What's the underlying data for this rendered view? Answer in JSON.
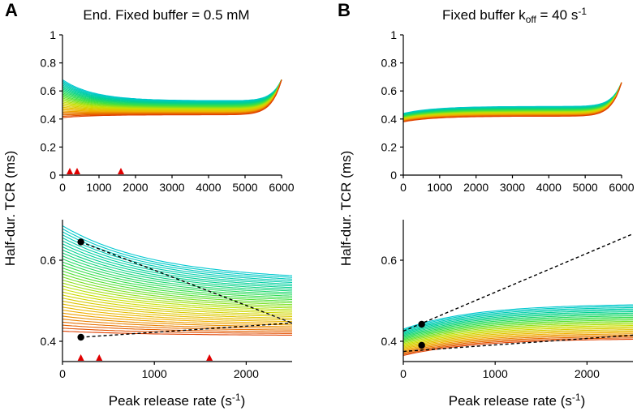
{
  "figure": {
    "panel_letters": [
      "A",
      "B"
    ],
    "title_a": "End. Fixed buffer = 0.5 mM",
    "title_b_main": "Fixed buffer k",
    "title_b_sub": "off",
    "title_b_tail": " = 40 s",
    "title_b_sup": "-1",
    "ylabel": "Half-dur. TCR (ms)",
    "xlabel": "Peak release rate (s",
    "xlabel_sup": "-1",
    "xlabel_close": ")"
  },
  "colors": {
    "family_gradient": [
      "#00c8d0",
      "#00d090",
      "#40e040",
      "#c8e000",
      "#f0b000",
      "#e04000"
    ],
    "markers": "#e00000",
    "points": "#000000"
  },
  "chart_data": [
    {
      "id": "A-top",
      "type": "line",
      "title": "End. Fixed buffer = 0.5 mM",
      "xlim": [
        0,
        6000
      ],
      "ylim": [
        0,
        1
      ],
      "xticks": [
        0,
        1000,
        2000,
        3000,
        4000,
        5000,
        6000
      ],
      "yticks": [
        0,
        0.2,
        0.4,
        0.6,
        0.8,
        1
      ],
      "xticklabels": [
        "0",
        "1000",
        "2000",
        "3000",
        "4000",
        "5000",
        "6000"
      ],
      "yticklabels": [
        "0",
        "0.2",
        "0.4",
        "0.6",
        "0.8",
        "1"
      ],
      "family": {
        "count": 30,
        "x_max": 6000,
        "start_top": 0.68,
        "start_bottom": 0.41,
        "mid_top": 0.53,
        "mid_bottom": 0.43,
        "end": 0.68
      },
      "release_markers_x": [
        200,
        400,
        1600
      ]
    },
    {
      "id": "B-top",
      "type": "line",
      "title": "Fixed buffer koff = 40 s-1",
      "xlim": [
        0,
        6000
      ],
      "ylim": [
        0,
        1
      ],
      "xticks": [
        0,
        1000,
        2000,
        3000,
        4000,
        5000,
        6000
      ],
      "yticks": [
        0,
        0.2,
        0.4,
        0.6,
        0.8,
        1
      ],
      "xticklabels": [
        "0",
        "1000",
        "2000",
        "3000",
        "4000",
        "5000",
        "6000"
      ],
      "yticklabels": [
        "0",
        "0.2",
        "0.4",
        "0.6",
        "0.8",
        "1"
      ],
      "family": {
        "count": 22,
        "x_max": 6000,
        "start_top": 0.44,
        "start_bottom": 0.38,
        "mid_top": 0.49,
        "mid_bottom": 0.42,
        "end": 0.66
      }
    },
    {
      "id": "A-bottom",
      "type": "line",
      "xlim": [
        0,
        2500
      ],
      "ylim": [
        0.35,
        0.7
      ],
      "xticks": [
        0,
        1000,
        2000
      ],
      "yticks": [
        0.4,
        0.6
      ],
      "xticklabels": [
        "0",
        "1000",
        "2000"
      ],
      "yticklabels": [
        "0.4",
        "0.6"
      ],
      "family": {
        "count": 36,
        "start_top": 0.685,
        "start_bottom": 0.425,
        "end_top": 0.56,
        "end_bottom": 0.415
      },
      "dashed_lines": [
        {
          "x": [
            200,
            2500
          ],
          "y": [
            0.645,
            0.445
          ]
        },
        {
          "x": [
            200,
            2500
          ],
          "y": [
            0.41,
            0.445
          ]
        }
      ],
      "points": [
        {
          "x": 200,
          "y": 0.645
        },
        {
          "x": 200,
          "y": 0.41
        }
      ],
      "release_markers_x": [
        200,
        400,
        1600
      ]
    },
    {
      "id": "B-bottom",
      "type": "line",
      "xlim": [
        0,
        2500
      ],
      "ylim": [
        0.35,
        0.7
      ],
      "xticks": [
        0,
        1000,
        2000
      ],
      "yticks": [
        0.4,
        0.6
      ],
      "xticklabels": [
        "0",
        "1000",
        "2000"
      ],
      "yticklabels": [
        "0.4",
        "0.6"
      ],
      "family": {
        "count": 26,
        "start_top": 0.43,
        "start_bottom": 0.365,
        "end_top": 0.49,
        "end_bottom": 0.405
      },
      "dashed_lines": [
        {
          "x": [
            0,
            2500
          ],
          "y": [
            0.425,
            0.665
          ]
        },
        {
          "x": [
            0,
            2500
          ],
          "y": [
            0.375,
            0.415
          ]
        }
      ],
      "points": [
        {
          "x": 200,
          "y": 0.442
        },
        {
          "x": 200,
          "y": 0.39
        }
      ]
    }
  ]
}
